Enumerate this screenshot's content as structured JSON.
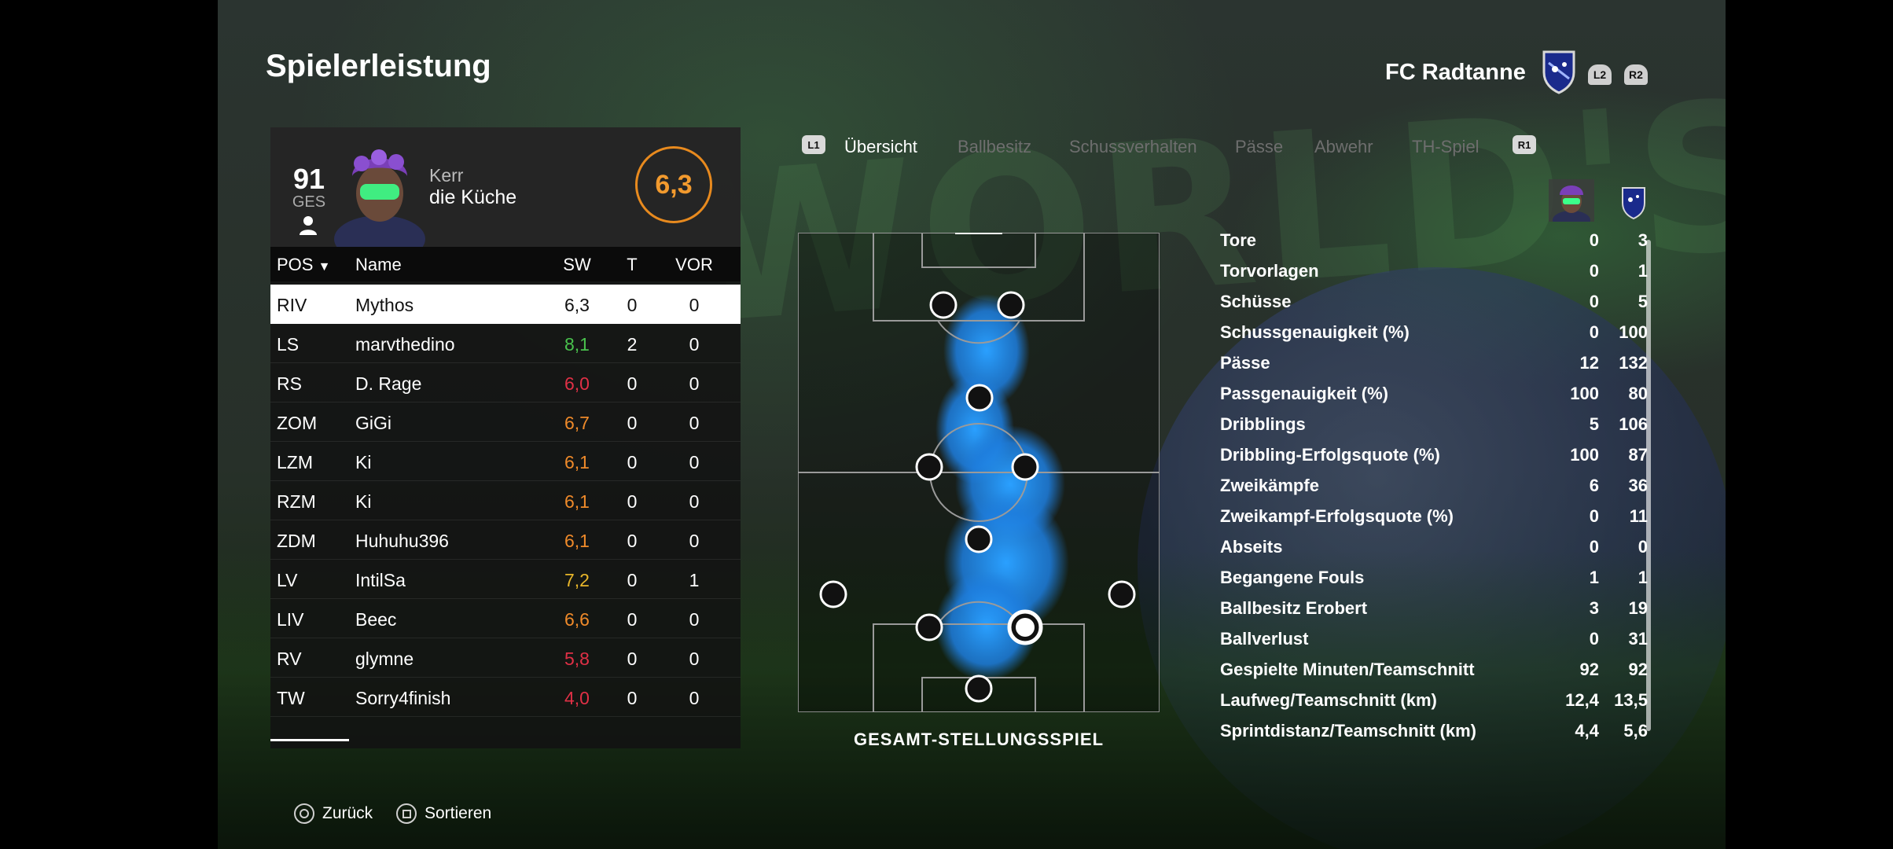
{
  "header": {
    "title": "Spielerleistung",
    "club_name": "FC Radtanne",
    "trigger_left": "L2",
    "trigger_right": "R2"
  },
  "player_card": {
    "overall": "91",
    "overall_label": "GES",
    "name_line1": "Kerr",
    "name_line2": "die Küche",
    "rating": "6,3",
    "rating_color": "#f29a2e"
  },
  "table": {
    "headers": {
      "pos": "POS",
      "name": "Name",
      "sw": "SW",
      "t": "T",
      "vor": "VOR"
    },
    "rows": [
      {
        "pos": "RIV",
        "name": "Mythos",
        "sw": "6,3",
        "t": "0",
        "vor": "0",
        "color": "#111111"
      },
      {
        "pos": "LS",
        "name": "marvthedino",
        "sw": "8,1",
        "t": "2",
        "vor": "0",
        "color": "#49c24d"
      },
      {
        "pos": "RS",
        "name": "D. Rage",
        "sw": "6,0",
        "t": "0",
        "vor": "0",
        "color": "#e03046"
      },
      {
        "pos": "ZOM",
        "name": "GiGi",
        "sw": "6,7",
        "t": "0",
        "vor": "0",
        "color": "#ef8a2a"
      },
      {
        "pos": "LZM",
        "name": "Ki",
        "sw": "6,1",
        "t": "0",
        "vor": "0",
        "color": "#ef8a2a"
      },
      {
        "pos": "RZM",
        "name": "Ki",
        "sw": "6,1",
        "t": "0",
        "vor": "0",
        "color": "#ef8a2a"
      },
      {
        "pos": "ZDM",
        "name": "Huhuhu396",
        "sw": "6,1",
        "t": "0",
        "vor": "0",
        "color": "#ef8a2a"
      },
      {
        "pos": "LV",
        "name": "IntilSa",
        "sw": "7,2",
        "t": "0",
        "vor": "1",
        "color": "#e8b62a"
      },
      {
        "pos": "LIV",
        "name": "Beec",
        "sw": "6,6",
        "t": "0",
        "vor": "0",
        "color": "#ef8a2a"
      },
      {
        "pos": "RV",
        "name": "glymne",
        "sw": "5,8",
        "t": "0",
        "vor": "0",
        "color": "#e03046"
      },
      {
        "pos": "TW",
        "name": "Sorry4finish",
        "sw": "4,0",
        "t": "0",
        "vor": "0",
        "color": "#e03046"
      }
    ]
  },
  "tabs": {
    "left_badge": "L1",
    "right_badge": "R1",
    "items": [
      {
        "label": "Übersicht",
        "active": true
      },
      {
        "label": "Ballbesitz",
        "active": false
      },
      {
        "label": "Schussverhalten",
        "active": false
      },
      {
        "label": "Pässe",
        "active": false
      },
      {
        "label": "Abwehr",
        "active": false
      },
      {
        "label": "TH-Spiel",
        "active": false
      }
    ]
  },
  "pitch": {
    "label": "GESAMT-STELLUNGSSPIEL",
    "heatmap_color": "#1e90ff"
  },
  "stats": [
    {
      "label": "Tore",
      "player": "0",
      "team": "3"
    },
    {
      "label": "Torvorlagen",
      "player": "0",
      "team": "1"
    },
    {
      "label": "Schüsse",
      "player": "0",
      "team": "5"
    },
    {
      "label": "Schussgenauigkeit (%)",
      "player": "0",
      "team": "100"
    },
    {
      "label": "Pässe",
      "player": "12",
      "team": "132"
    },
    {
      "label": "Passgenauigkeit (%)",
      "player": "100",
      "team": "80"
    },
    {
      "label": "Dribblings",
      "player": "5",
      "team": "106"
    },
    {
      "label": "Dribbling-Erfolgsquote (%)",
      "player": "100",
      "team": "87"
    },
    {
      "label": "Zweikämpfe",
      "player": "6",
      "team": "36"
    },
    {
      "label": "Zweikampf-Erfolgsquote (%)",
      "player": "0",
      "team": "11"
    },
    {
      "label": "Abseits",
      "player": "0",
      "team": "0"
    },
    {
      "label": "Begangene Fouls",
      "player": "1",
      "team": "1"
    },
    {
      "label": "Ballbesitz Erobert",
      "player": "3",
      "team": "19"
    },
    {
      "label": "Ballverlust",
      "player": "0",
      "team": "31"
    },
    {
      "label": "Gespielte Minuten/Teamschnitt",
      "player": "92",
      "team": "92"
    },
    {
      "label": "Laufweg/Teamschnitt (km)",
      "player": "12,4",
      "team": "13,5"
    },
    {
      "label": "Sprintdistanz/Teamschnitt (km)",
      "player": "4,4",
      "team": "5,6"
    }
  ],
  "footer": {
    "back_label": "Zurück",
    "sort_label": "Sortieren"
  }
}
